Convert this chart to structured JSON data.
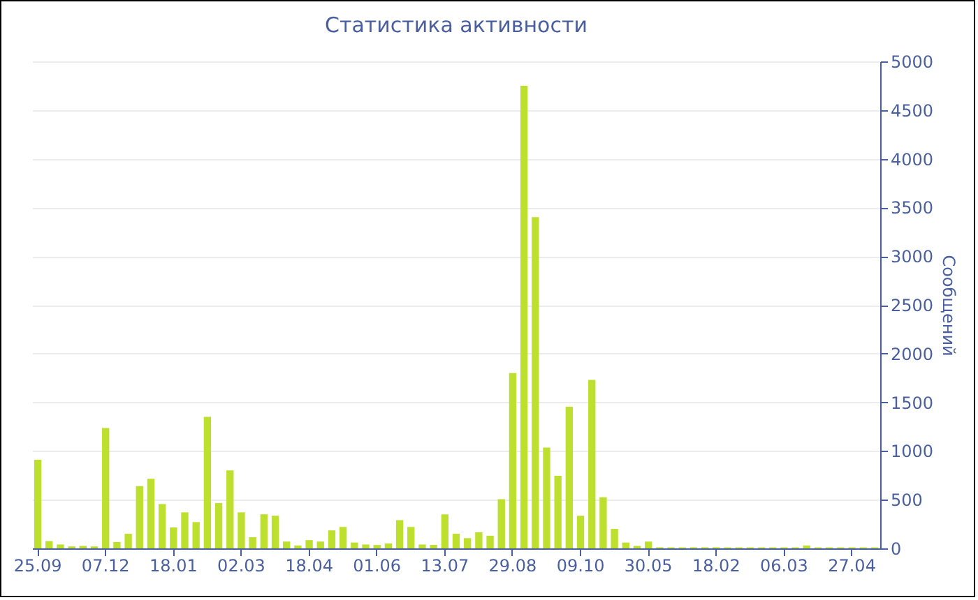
{
  "chart_data": {
    "type": "bar",
    "title": "Статистика активности",
    "ylabel": "Сообщений",
    "categories": [
      "25.09",
      null,
      null,
      null,
      null,
      null,
      "07.12",
      null,
      null,
      null,
      null,
      null,
      "18.01",
      null,
      null,
      null,
      null,
      null,
      "02.03",
      null,
      null,
      null,
      null,
      null,
      "18.04",
      null,
      null,
      null,
      null,
      null,
      "01.06",
      null,
      null,
      null,
      null,
      null,
      "13.07",
      null,
      null,
      null,
      null,
      null,
      "29.08",
      null,
      null,
      null,
      null,
      null,
      "09.10",
      null,
      null,
      null,
      null,
      null,
      "30.05",
      null,
      null,
      null,
      null,
      null,
      "18.02",
      null,
      null,
      null,
      null,
      null,
      "06.03",
      null,
      null,
      null,
      null,
      null,
      "27.04",
      null,
      null
    ],
    "values": [
      910,
      75,
      40,
      20,
      25,
      20,
      1235,
      65,
      150,
      640,
      715,
      455,
      215,
      370,
      270,
      1350,
      465,
      800,
      370,
      115,
      350,
      335,
      70,
      30,
      85,
      70,
      185,
      220,
      60,
      40,
      35,
      50,
      290,
      220,
      40,
      35,
      350,
      150,
      105,
      165,
      130,
      505,
      1800,
      4750,
      3400,
      1035,
      745,
      1455,
      335,
      1730,
      525,
      200,
      60,
      25,
      70,
      10,
      10,
      10,
      10,
      10,
      10,
      10,
      10,
      10,
      10,
      10,
      10,
      10,
      30,
      10,
      10,
      10,
      10,
      10,
      10
    ],
    "color": "#bde02f",
    "ylim": [
      0,
      5000
    ],
    "yticks": [
      0,
      500,
      1000,
      1500,
      2000,
      2500,
      3000,
      3500,
      4000,
      4500,
      5000
    ],
    "grid": "y"
  }
}
